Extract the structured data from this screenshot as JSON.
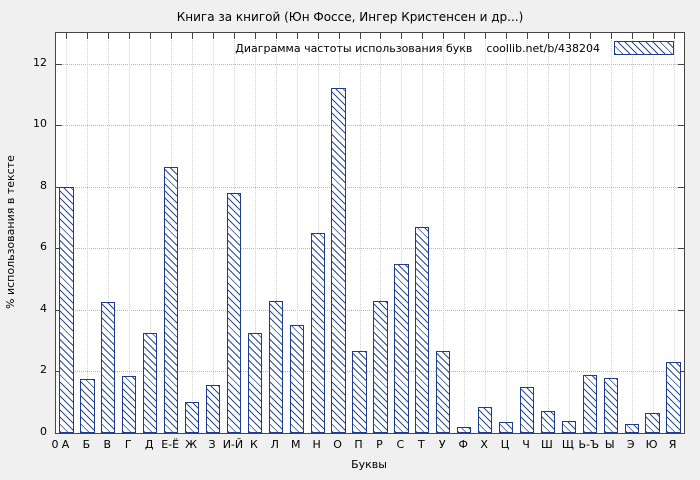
{
  "chart_data": {
    "type": "bar",
    "title": "Книга за книгой  (Юн Фоссе, Ингер Кристенсен и др...)",
    "legend_label": "Диаграмма частоты использования букв",
    "legend_url": "coollib.net/b/438204",
    "legend_position": "top-right",
    "xlabel": "Буквы",
    "ylabel": "% использования в тексте",
    "x_origin_label": "0",
    "categories": [
      "А",
      "Б",
      "В",
      "Г",
      "Д",
      "Е-Ё",
      "Ж",
      "З",
      "И-Й",
      "К",
      "Л",
      "М",
      "Н",
      "О",
      "П",
      "Р",
      "С",
      "Т",
      "У",
      "Ф",
      "Х",
      "Ц",
      "Ч",
      "Ш",
      "Щ",
      "Ь-Ъ",
      "Ы",
      "Э",
      "Ю",
      "Я"
    ],
    "values": [
      8.0,
      1.75,
      4.25,
      1.85,
      3.25,
      8.65,
      1.0,
      1.55,
      7.8,
      3.25,
      4.3,
      3.5,
      6.5,
      11.2,
      2.65,
      4.3,
      5.5,
      6.7,
      2.65,
      0.2,
      0.85,
      0.35,
      1.5,
      0.7,
      0.4,
      1.9,
      1.8,
      0.3,
      0.65,
      2.3
    ],
    "yticks": [
      0,
      2,
      4,
      6,
      8,
      10,
      12
    ],
    "ylim": [
      0,
      13
    ],
    "grid": true,
    "bar_color": "#1f3b8c",
    "hatch": "diagonal",
    "background": "#f0f0f0",
    "plot_background": "#ffffff"
  }
}
